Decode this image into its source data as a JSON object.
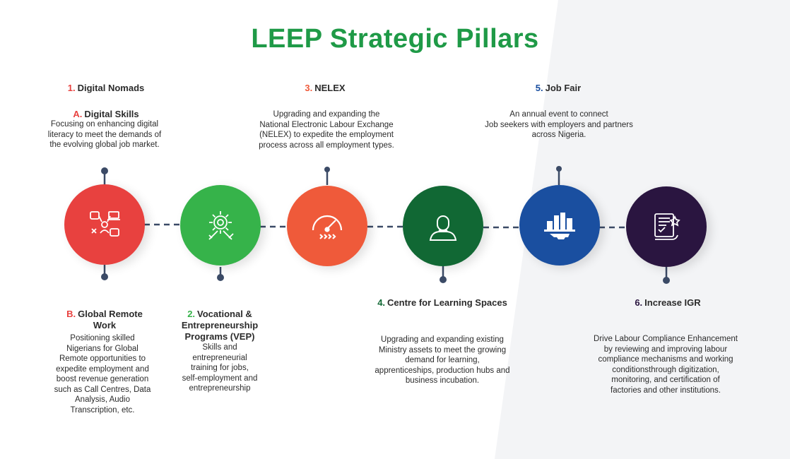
{
  "title": "LEEP Strategic Pillars",
  "colors": {
    "title_green": "#1f9a47",
    "pillar1": "#e8413f",
    "pillar2": "#36b34a",
    "pillar3": "#ef5a3a",
    "pillar4": "#116834",
    "pillar5": "#1a4fa0",
    "pillar6": "#2a1540",
    "connector": "#3b4a66"
  },
  "pillars": [
    {
      "num": "1.",
      "label": "Digital Nomads",
      "icon": "digital-skills-icon",
      "sub": [
        {
          "letter": "A.",
          "label": "Digital Skills",
          "desc": "Focusing on enhancing digital\nliteracy to meet the demands of\nthe evolving global job market."
        },
        {
          "letter": "B.",
          "label": "Global Remote\nWork",
          "desc": "Positioning skilled\nNigerians for Global\nRemote opportunities to\nexpedite employment and\nboost revenue generation\nsuch as Call Centres, Data\nAnalysis, Audio\nTranscription, etc."
        }
      ]
    },
    {
      "num": "2.",
      "label": "Vocational &\nEntrepreneurship\nPrograms (VEP)",
      "icon": "gear-tools-icon",
      "desc": "Skills and\nentrepreneurial\ntraining for jobs,\nself-employment and\nentrepreneurship"
    },
    {
      "num": "3.",
      "label": "NELEX",
      "icon": "speedometer-icon",
      "desc": "Upgrading and expanding the\nNational Electronic Labour Exchange\n(NELEX) to expedite the employment\nprocess across all employment types."
    },
    {
      "num": "4.",
      "label": "Centre for Learning Spaces",
      "icon": "person-icon",
      "desc": "Upgrading and expanding existing\nMinistry assets to meet the growing\ndemand for learning,\napprenticeships, production hubs and\nbusiness incubation."
    },
    {
      "num": "5.",
      "label": "Job Fair",
      "icon": "industry-gear-icon",
      "desc": "An annual event to connect\nJob seekers with  employers and partners\nacross Nigeria."
    },
    {
      "num": "6.",
      "label": "Increase IGR",
      "icon": "certificate-icon",
      "desc": "Drive Labour Compliance Enhancement\nby reviewing and improving labour\ncompliance  mechanisms and working\nconditionsthrough  digitization,\nmonitoring, and certification of\nfactories and other institutions."
    }
  ]
}
